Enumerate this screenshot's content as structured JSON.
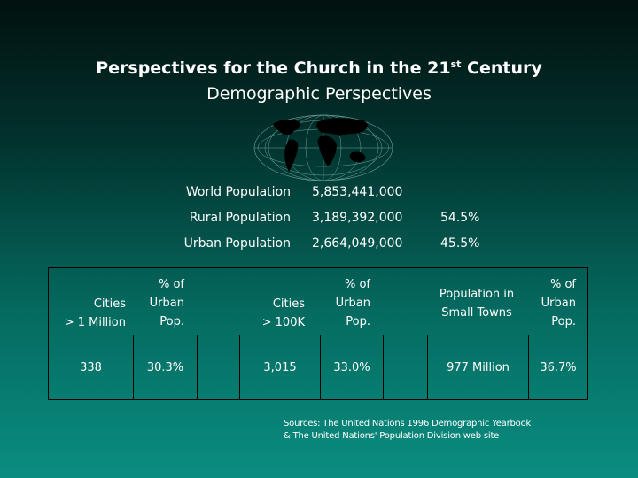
{
  "title": {
    "main": "Perspectives for the Church in the 21",
    "sup": "st",
    "suffix": " Century",
    "subtitle": "Demographic Perspectives"
  },
  "icons": {
    "globe": "world-map-globe-icon"
  },
  "stats": [
    {
      "label": "World Population",
      "value": "5,853,441,000",
      "percent": ""
    },
    {
      "label": "Rural Population",
      "value": "3,189,392,000",
      "percent": "54.5%"
    },
    {
      "label": "Urban Population",
      "value": "2,664,049,000",
      "percent": "45.5%"
    }
  ],
  "table": {
    "groups": [
      {
        "h1": [
          "Cities",
          "> 1 Million"
        ],
        "h2": [
          "% of",
          "Urban",
          "Pop."
        ],
        "v1": "338",
        "v2": "30.3%"
      },
      {
        "h1": [
          "Cities",
          "> 100K"
        ],
        "h2": [
          "% of",
          "Urban",
          "Pop."
        ],
        "v1": "3,015",
        "v2": "33.0%"
      },
      {
        "h1": [
          "Population in",
          "Small Towns"
        ],
        "h2": [
          "% of",
          "Urban",
          "Pop."
        ],
        "v1": "977 Million",
        "v2": "36.7%"
      }
    ]
  },
  "source": {
    "line1": "Sources: The United Nations 1996 Demographic Yearbook",
    "line2": "& The United Nations' Population Division web site"
  }
}
